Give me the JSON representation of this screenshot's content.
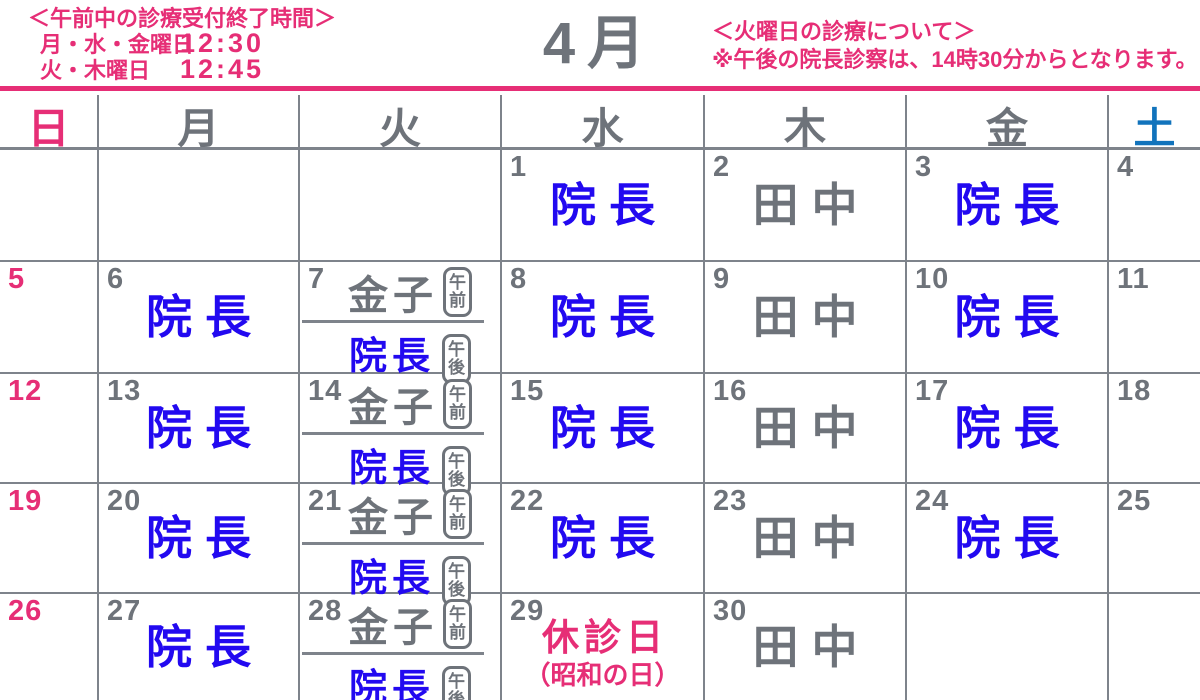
{
  "colors": {
    "pink": "#E62E76",
    "text_gray": "#6E737A",
    "doctor_blue": "#2209F0",
    "saturday_blue": "#1173BC",
    "grid_line": "#7E838B"
  },
  "header": {
    "reception": {
      "title": "＜午前中の診療受付終了時間＞",
      "rows": [
        {
          "label": "月・水・金曜日",
          "time": "12:30"
        },
        {
          "label": "火・木曜日",
          "time": "12:45"
        }
      ]
    },
    "month": "4月",
    "tuesday_note": {
      "title": "＜火曜日の診療について＞",
      "note": "※午後の院長診察は、14時30分からとなります。"
    }
  },
  "weekdays": [
    {
      "label": "日",
      "color": "pink",
      "key": "sun"
    },
    {
      "label": "月",
      "color": "gray",
      "key": "mon"
    },
    {
      "label": "火",
      "color": "gray",
      "key": "tue"
    },
    {
      "label": "水",
      "color": "gray",
      "key": "wed"
    },
    {
      "label": "木",
      "color": "gray",
      "key": "thu"
    },
    {
      "label": "金",
      "color": "gray",
      "key": "fri"
    },
    {
      "label": "土",
      "color": "blue",
      "key": "sat"
    }
  ],
  "badges": {
    "am": "午前",
    "pm": "午後"
  },
  "calendar": {
    "rows": [
      {
        "cells": [
          {
            "type": "blank"
          },
          {
            "type": "blank"
          },
          {
            "type": "blank"
          },
          {
            "type": "staff",
            "day": "1",
            "name": "院長",
            "name_color": "blue"
          },
          {
            "type": "staff",
            "day": "2",
            "name": "田中",
            "name_color": "gray"
          },
          {
            "type": "staff",
            "day": "3",
            "name": "院長",
            "name_color": "blue"
          },
          {
            "type": "daynum",
            "day": "4"
          }
        ]
      },
      {
        "cells": [
          {
            "type": "daynum",
            "day": "5",
            "day_color": "pink"
          },
          {
            "type": "staff",
            "day": "6",
            "name": "院長",
            "name_color": "blue"
          },
          {
            "type": "split",
            "day": "7",
            "am_name": "金子",
            "pm_name": "院長"
          },
          {
            "type": "staff",
            "day": "8",
            "name": "院長",
            "name_color": "blue"
          },
          {
            "type": "staff",
            "day": "9",
            "name": "田中",
            "name_color": "gray"
          },
          {
            "type": "staff",
            "day": "10",
            "name": "院長",
            "name_color": "blue"
          },
          {
            "type": "daynum",
            "day": "11"
          }
        ]
      },
      {
        "cells": [
          {
            "type": "daynum",
            "day": "12",
            "day_color": "pink"
          },
          {
            "type": "staff",
            "day": "13",
            "name": "院長",
            "name_color": "blue"
          },
          {
            "type": "split",
            "day": "14",
            "am_name": "金子",
            "pm_name": "院長"
          },
          {
            "type": "staff",
            "day": "15",
            "name": "院長",
            "name_color": "blue"
          },
          {
            "type": "staff",
            "day": "16",
            "name": "田中",
            "name_color": "gray"
          },
          {
            "type": "staff",
            "day": "17",
            "name": "院長",
            "name_color": "blue"
          },
          {
            "type": "daynum",
            "day": "18"
          }
        ]
      },
      {
        "cells": [
          {
            "type": "daynum",
            "day": "19",
            "day_color": "pink"
          },
          {
            "type": "staff",
            "day": "20",
            "name": "院長",
            "name_color": "blue"
          },
          {
            "type": "split",
            "day": "21",
            "am_name": "金子",
            "pm_name": "院長"
          },
          {
            "type": "staff",
            "day": "22",
            "name": "院長",
            "name_color": "blue"
          },
          {
            "type": "staff",
            "day": "23",
            "name": "田中",
            "name_color": "gray"
          },
          {
            "type": "staff",
            "day": "24",
            "name": "院長",
            "name_color": "blue"
          },
          {
            "type": "daynum",
            "day": "25"
          }
        ]
      },
      {
        "cells": [
          {
            "type": "daynum",
            "day": "26",
            "day_color": "pink"
          },
          {
            "type": "staff",
            "day": "27",
            "name": "院長",
            "name_color": "blue"
          },
          {
            "type": "split",
            "day": "28",
            "am_name": "金子",
            "pm_name": "院長"
          },
          {
            "type": "holiday",
            "day": "29",
            "line1": "休診日",
            "line2": "（昭和の日）"
          },
          {
            "type": "staff",
            "day": "30",
            "name": "田中",
            "name_color": "gray"
          },
          {
            "type": "blank"
          },
          {
            "type": "blank"
          }
        ]
      }
    ]
  }
}
